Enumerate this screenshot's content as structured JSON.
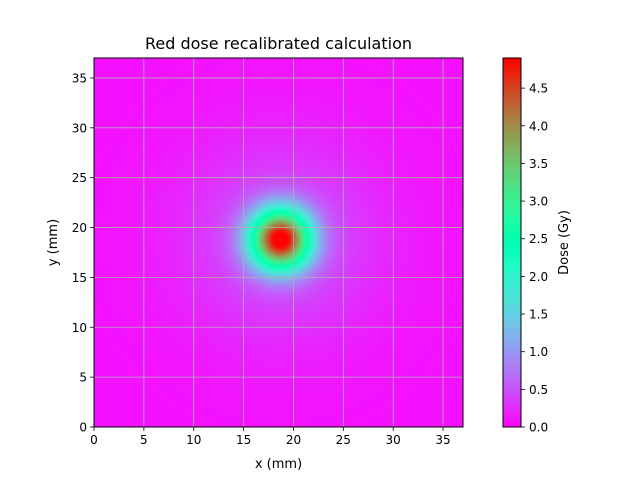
{
  "chart_data": {
    "type": "heatmap",
    "title": "Red dose recalibrated calculation",
    "xlabel": "x (mm)",
    "ylabel": "y (mm)",
    "xlim": [
      0,
      37
    ],
    "ylim": [
      0,
      37
    ],
    "x_ticks": [
      0,
      5,
      10,
      15,
      20,
      25,
      30,
      35
    ],
    "y_ticks": [
      0,
      5,
      10,
      15,
      20,
      25,
      30,
      35
    ],
    "grid": true,
    "colormap": "rainbow",
    "colorbar": {
      "label": "Dose (Gy)",
      "range": [
        0,
        4.9
      ],
      "ticks": [
        "0.0",
        "0.5",
        "1.0",
        "1.5",
        "2.0",
        "2.5",
        "3.0",
        "3.5",
        "4.0",
        "4.5"
      ]
    },
    "dose_field": {
      "peak_center_mm": [
        18.7,
        18.8
      ],
      "peak_dose_gy": 4.8,
      "background_dose_gy": 0.1,
      "components": [
        {
          "amplitude_gy": 4.6,
          "sigma_mm": 2.1
        },
        {
          "amplitude_gy": 0.45,
          "sigma_mm": 7.0
        }
      ]
    }
  }
}
